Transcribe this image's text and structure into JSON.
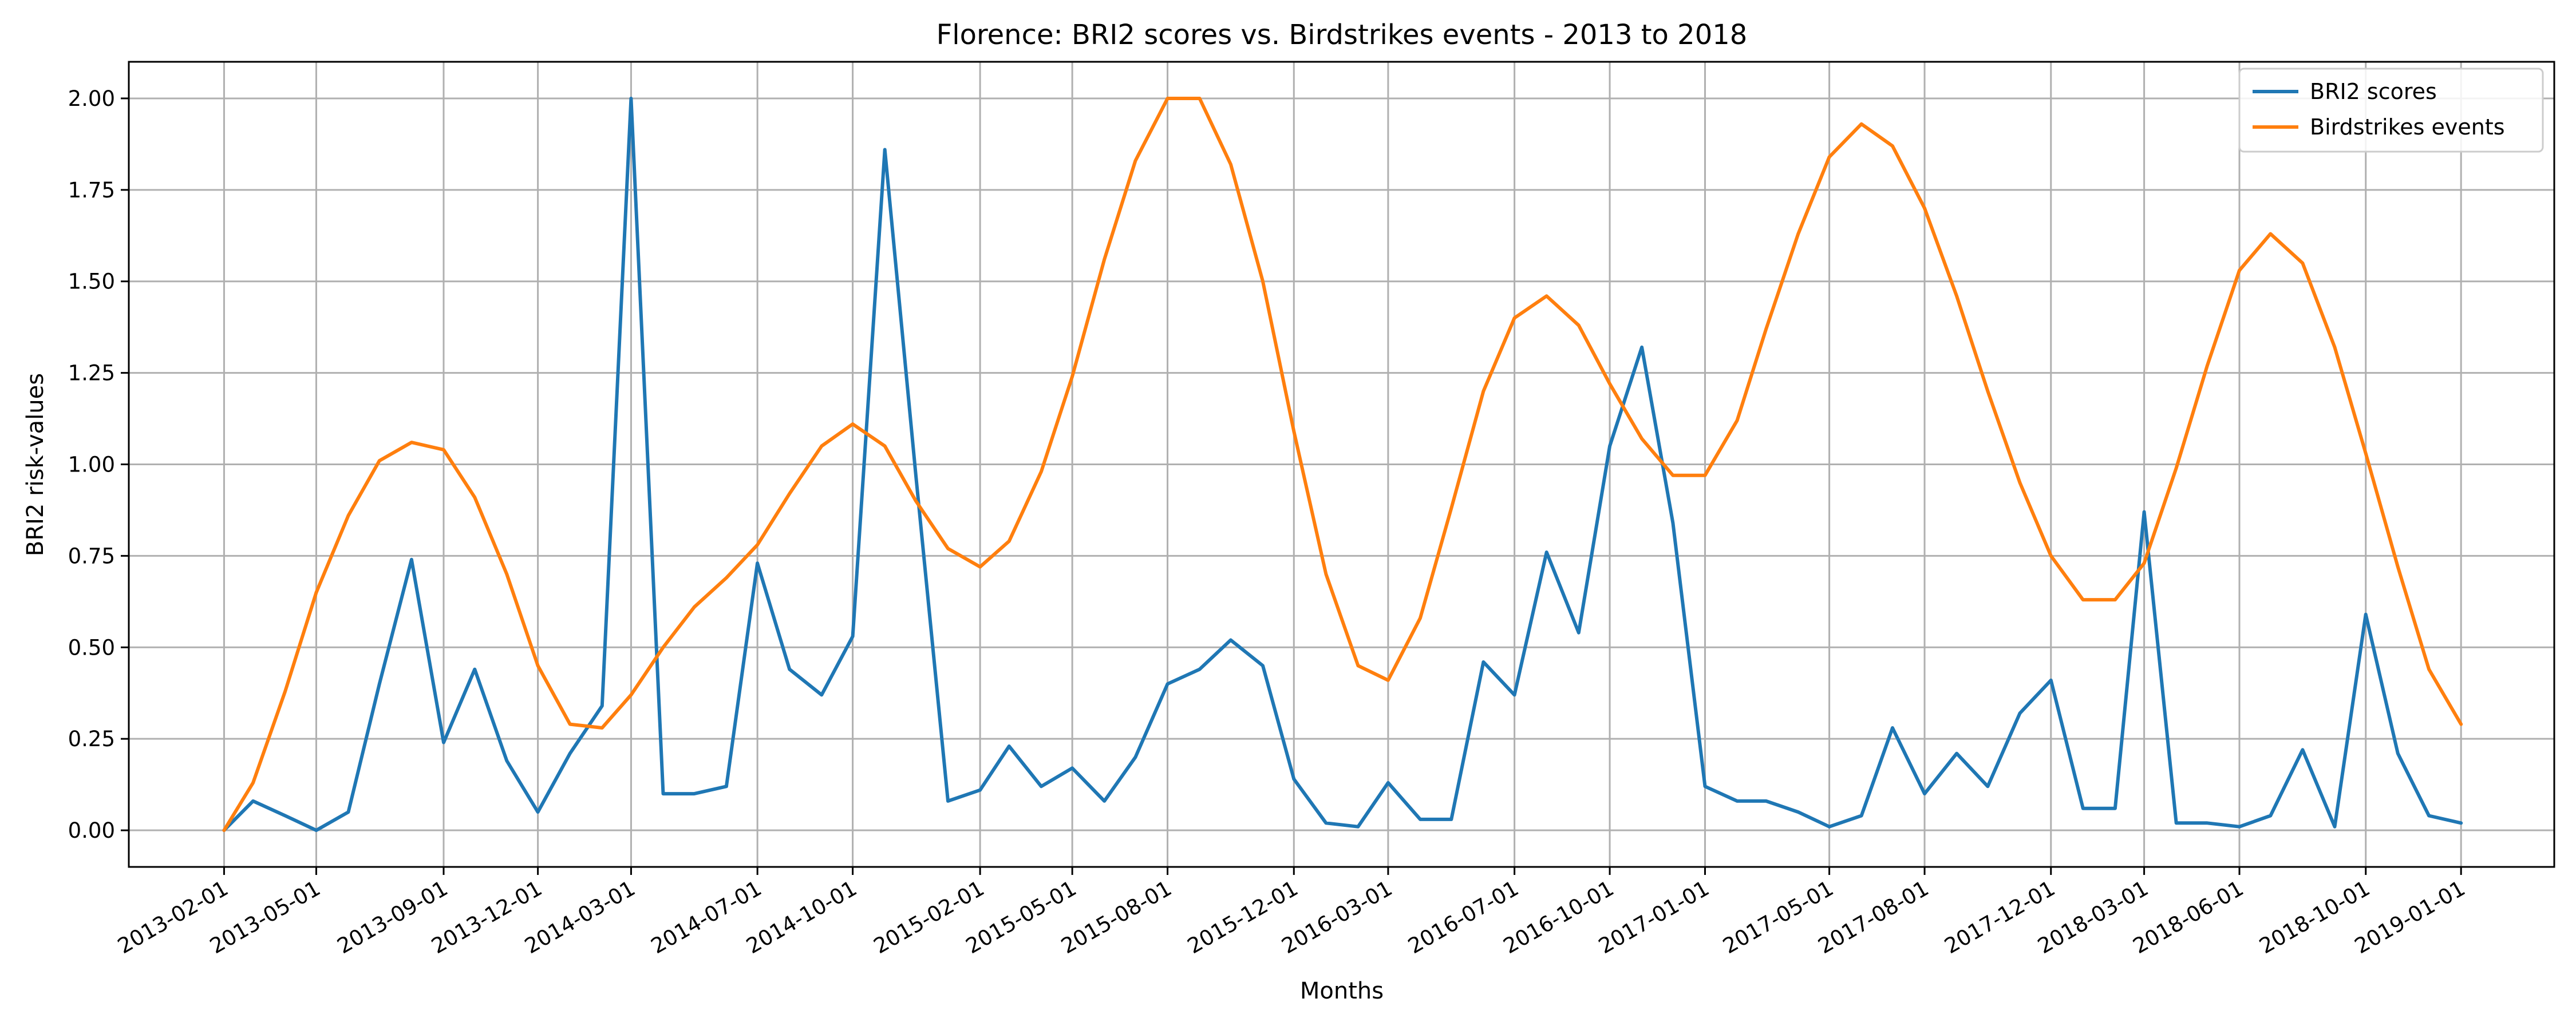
{
  "chart_data": {
    "type": "line",
    "title": "Florence: BRI2 scores vs. Birdstrikes events - 2013 to 2018",
    "xlabel": "Months",
    "ylabel": "BRI2 risk-values",
    "ylim": [
      -0.1,
      2.1
    ],
    "yticks": [
      "0.00",
      "0.25",
      "0.50",
      "0.75",
      "1.00",
      "1.25",
      "1.50",
      "1.75",
      "2.00"
    ],
    "xlim": [
      "2012-11-01",
      "2019-04-01"
    ],
    "xticks": [
      "2013-02-01",
      "2013-05-01",
      "2013-09-01",
      "2013-12-01",
      "2014-03-01",
      "2014-07-01",
      "2014-10-01",
      "2015-02-01",
      "2015-05-01",
      "2015-08-01",
      "2015-12-01",
      "2016-03-01",
      "2016-07-01",
      "2016-10-01",
      "2017-01-01",
      "2017-05-01",
      "2017-08-01",
      "2017-12-01",
      "2018-03-01",
      "2018-06-01",
      "2018-10-01",
      "2019-01-01"
    ],
    "grid": true,
    "legend": "top-right",
    "x": [
      "2013-02-01",
      "2013-03-01",
      "2013-04-01",
      "2013-05-01",
      "2013-06-01",
      "2013-07-01",
      "2013-08-01",
      "2013-09-01",
      "2013-10-01",
      "2013-11-01",
      "2013-12-01",
      "2014-01-01",
      "2014-02-01",
      "2014-03-01",
      "2014-04-01",
      "2014-05-01",
      "2014-06-01",
      "2014-07-01",
      "2014-08-01",
      "2014-09-01",
      "2014-10-01",
      "2014-11-01",
      "2014-12-01",
      "2015-01-01",
      "2015-02-01",
      "2015-03-01",
      "2015-04-01",
      "2015-05-01",
      "2015-06-01",
      "2015-07-01",
      "2015-08-01",
      "2015-09-01",
      "2015-10-01",
      "2015-11-01",
      "2015-12-01",
      "2016-01-01",
      "2016-02-01",
      "2016-03-01",
      "2016-04-01",
      "2016-05-01",
      "2016-06-01",
      "2016-07-01",
      "2016-08-01",
      "2016-09-01",
      "2016-10-01",
      "2016-11-01",
      "2016-12-01",
      "2017-01-01",
      "2017-02-01",
      "2017-03-01",
      "2017-04-01",
      "2017-05-01",
      "2017-06-01",
      "2017-07-01",
      "2017-08-01",
      "2017-09-01",
      "2017-10-01",
      "2017-11-01",
      "2017-12-01",
      "2018-01-01",
      "2018-02-01",
      "2018-03-01",
      "2018-04-01",
      "2018-05-01",
      "2018-06-01",
      "2018-07-01",
      "2018-08-01",
      "2018-09-01",
      "2018-10-01",
      "2018-11-01",
      "2018-12-01",
      "2019-01-01"
    ],
    "series": [
      {
        "name": "BRI2 scores",
        "color": "#1f77b4",
        "values": [
          0.0,
          0.08,
          0.04,
          0.0,
          0.05,
          0.4,
          0.74,
          0.24,
          0.44,
          0.19,
          0.05,
          0.21,
          0.34,
          2.0,
          0.1,
          0.1,
          0.12,
          0.73,
          0.44,
          0.37,
          0.53,
          1.86,
          0.97,
          0.08,
          0.11,
          0.23,
          0.12,
          0.17,
          0.08,
          0.2,
          0.4,
          0.44,
          0.52,
          0.45,
          0.14,
          0.02,
          0.01,
          0.13,
          0.03,
          0.03,
          0.46,
          0.37,
          0.76,
          0.54,
          1.05,
          1.32,
          0.84,
          0.12,
          0.08,
          0.08,
          0.05,
          0.01,
          0.04,
          0.28,
          0.1,
          0.21,
          0.12,
          0.32,
          0.41,
          0.06,
          0.06,
          0.87,
          0.02,
          0.02,
          0.01,
          0.04,
          0.22,
          0.01,
          0.59,
          0.21,
          0.04,
          0.02
        ]
      },
      {
        "name": "Birdstrikes events",
        "color": "#ff7f0e",
        "values": [
          0.0,
          0.13,
          0.38,
          0.65,
          0.86,
          1.01,
          1.06,
          1.04,
          0.91,
          0.7,
          0.45,
          0.29,
          0.28,
          0.37,
          0.5,
          0.61,
          0.69,
          0.78,
          0.92,
          1.05,
          1.11,
          1.05,
          0.9,
          0.77,
          0.72,
          0.79,
          0.98,
          1.24,
          1.56,
          1.83,
          2.0,
          2.0,
          1.82,
          1.5,
          1.09,
          0.7,
          0.45,
          0.41,
          0.58,
          0.88,
          1.2,
          1.4,
          1.46,
          1.38,
          1.22,
          1.07,
          0.97,
          0.97,
          1.12,
          1.37,
          1.63,
          1.84,
          1.93,
          1.87,
          1.7,
          1.46,
          1.2,
          0.95,
          0.75,
          0.63,
          0.63,
          0.73,
          0.99,
          1.27,
          1.53,
          1.63,
          1.55,
          1.32,
          1.03,
          0.72,
          0.44,
          0.29
        ]
      }
    ]
  }
}
